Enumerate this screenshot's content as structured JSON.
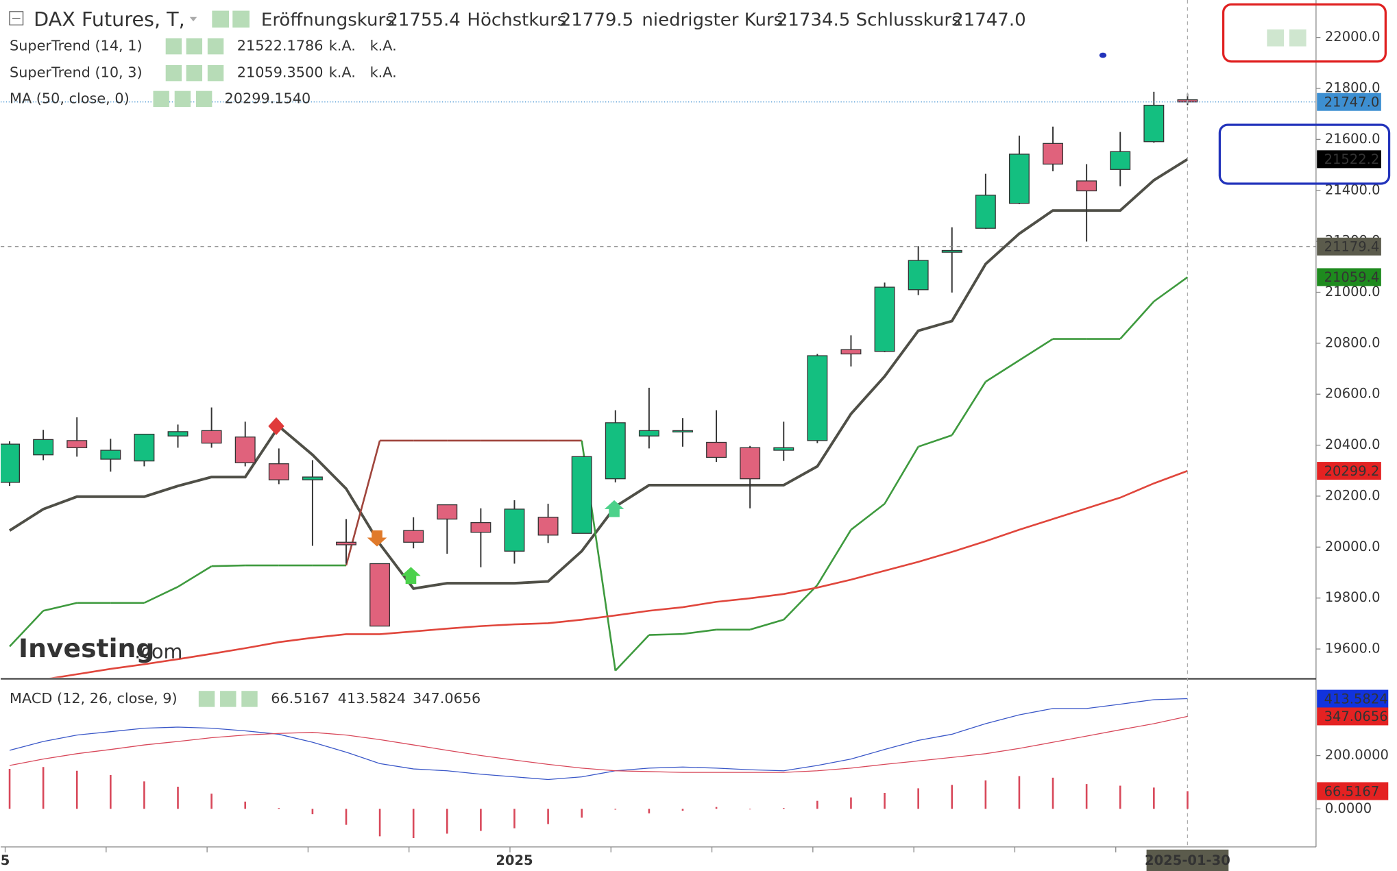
{
  "logo": {
    "brand": "Investing",
    "suffix": ".com"
  },
  "chart_data": [
    {
      "type": "candlestick",
      "title": "DAX Futures, T,",
      "header_labels": [
        "Eröffnungskurs",
        "Höchstkurs",
        "niedrigster Kurs",
        "Schlusskurs"
      ],
      "close_label": "21747.0",
      "categories": [
        "5",
        null,
        null,
        null,
        null,
        null,
        null,
        null,
        null,
        null,
        null,
        null,
        null,
        null,
        null,
        "2025",
        null,
        null,
        null,
        null,
        null,
        null,
        null,
        null,
        null,
        null,
        null,
        null,
        null,
        null,
        null,
        null,
        null,
        null,
        null,
        "2025-01-30"
      ],
      "open": [
        20254,
        20362,
        20418,
        20345,
        20338,
        20436,
        20457,
        20432,
        20327,
        20264,
        20019,
        19935,
        20065,
        20166,
        20096,
        19984,
        20117,
        20054,
        20268,
        20436,
        20453,
        20411,
        20390,
        20380,
        20418,
        20775,
        20768,
        21010,
        21157,
        21251,
        21349,
        21584,
        21437,
        21482,
        21591,
        21755.4
      ],
      "high": [
        20415,
        20460,
        20509,
        20425,
        20443,
        20481,
        20548,
        20492,
        20387,
        20341,
        20110,
        19935,
        20117,
        20166,
        20152,
        20184,
        20170,
        20355,
        20537,
        20625,
        20506,
        20537,
        20397,
        20492,
        20758,
        20831,
        21038,
        21181,
        21255,
        21465,
        21615,
        21650,
        21503,
        21629,
        21787,
        21779.5
      ],
      "low": [
        20240,
        20341,
        20355,
        20296,
        20317,
        20390,
        20390,
        20317,
        20247,
        20005,
        19935,
        19690,
        19995,
        19974,
        19921,
        19935,
        20016,
        20054,
        20254,
        20387,
        20394,
        20334,
        20152,
        20338,
        20408,
        20709,
        20765,
        20989,
        20999,
        21248,
        21346,
        21475,
        21199,
        21416,
        21587,
        21734.5
      ],
      "close": [
        20404,
        20422,
        20390,
        20380,
        20443,
        20453,
        20408,
        20331,
        20264,
        20275,
        20009,
        19690,
        20019,
        20110,
        20058,
        20149,
        20047,
        20355,
        20488,
        20457,
        20457,
        20352,
        20268,
        20390,
        20751,
        20758,
        21020,
        21125,
        21164,
        21381,
        21542,
        21503,
        21398,
        21552,
        21734,
        21747.0
      ],
      "up_color": "#14bf80",
      "down_color": "#e0627c",
      "close_box_color": "#3d8fd1",
      "series": [
        {
          "name": "SuperTrend (14, 1)",
          "color": "#4f4f47",
          "legend_color": "#111111",
          "extra": [
            "k.A.",
            "k.A."
          ],
          "last_label": "21522.2",
          "box_color": "#000000",
          "values": [
            20065,
            20149,
            20198,
            20198,
            20198,
            20240,
            20275,
            20275,
            20474,
            20362,
            20229,
            20012,
            19837,
            19858,
            19858,
            19858,
            19865,
            19984,
            20159,
            20243,
            20243,
            20243,
            20243,
            20243,
            20317,
            20523,
            20670,
            20849,
            20887,
            21111,
            21230,
            21321,
            21321,
            21321,
            21440,
            21522.1786
          ]
        },
        {
          "name": "SuperTrend (10, 3)",
          "color": "#3e9a3e",
          "legend_color": "#1e8a1e",
          "extra": [
            "k.A.",
            "k.A."
          ],
          "legend_value": "21059.3500",
          "last_label": "21059.4",
          "box_color": "#1e8a1e",
          "segment_colors": [
            "#3e9a3e",
            "#3e9a3e",
            "#3e9a3e",
            "#3e9a3e",
            "#3e9a3e",
            "#3e9a3e",
            "#3e9a3e",
            "#3e9a3e",
            "#3e9a3e",
            "#3e9a3e",
            "#3e9a3e",
            "#a0453c",
            "#a0453c",
            "#a0453c",
            "#a0453c",
            "#a0453c",
            "#a0453c",
            "#a0453c",
            "#3e9a3e",
            "#3e9a3e",
            "#3e9a3e",
            "#3e9a3e",
            "#3e9a3e",
            "#3e9a3e",
            "#3e9a3e",
            "#3e9a3e",
            "#3e9a3e",
            "#3e9a3e",
            "#3e9a3e",
            "#3e9a3e",
            "#3e9a3e",
            "#3e9a3e",
            "#3e9a3e",
            "#3e9a3e",
            "#3e9a3e",
            "#3e9a3e"
          ],
          "values": [
            19610,
            19750,
            19781,
            19781,
            19781,
            19844,
            19925,
            19928,
            19928,
            19928,
            19928,
            20418,
            20418,
            20418,
            20418,
            20418,
            20418,
            20418,
            19515,
            19655,
            19659,
            19676,
            19676,
            19715,
            19851,
            20068,
            20170,
            20394,
            20439,
            20649,
            20733,
            20817,
            20817,
            20817,
            20964,
            21059.35
          ]
        },
        {
          "name": "MA (50, close, 0)",
          "color": "#e0463c",
          "legend_color": "#e02020",
          "legend_value": "20299.1540",
          "last_label": "20299.2",
          "box_color": "#e42222",
          "values": [
            19466,
            19480,
            19501,
            19522,
            19540,
            19560,
            19581,
            19603,
            19627,
            19644,
            19658,
            19658,
            19669,
            19680,
            19690,
            19697,
            19701,
            19715,
            19732,
            19750,
            19764,
            19785,
            19799,
            19816,
            19841,
            19872,
            19907,
            19942,
            19981,
            20023,
            20068,
            20110,
            20152,
            20194,
            20250,
            20299.154
          ]
        }
      ],
      "crosshair": 21179.4,
      "crosshair_color": "#5b5b4c",
      "ylim": [
        19488,
        22147
      ],
      "yticks": [
        {
          "value": 19600,
          "label": "19600.0"
        },
        {
          "value": 19800,
          "label": "19800.0"
        },
        {
          "value": 20000,
          "label": "20000.0"
        },
        {
          "value": 20200,
          "label": "20200.0"
        },
        {
          "value": 20400,
          "label": "20400.0"
        },
        {
          "value": 20600,
          "label": "20600.0"
        },
        {
          "value": 20800,
          "label": "20800.0"
        },
        {
          "value": 21000,
          "label": "21000.0"
        },
        {
          "value": 21200,
          "label": "21200.0"
        },
        {
          "value": 21400,
          "label": "21400.0"
        },
        {
          "value": 21600,
          "label": "21600.0"
        },
        {
          "value": 21800,
          "label": "21800.0"
        },
        {
          "value": 22000,
          "label": "22000.0"
        }
      ],
      "grid": false
    },
    {
      "type": "macd",
      "title": "MACD (12, 26, close, 9)",
      "histogram": {
        "color": "#d8485a",
        "box_color": "#e42222",
        "values": [
          150,
          157,
          143,
          127,
          103,
          83,
          57,
          27,
          3,
          -20,
          -60,
          -103,
          -110,
          -93,
          -83,
          -73,
          -57,
          -33,
          -3,
          -17,
          -7,
          7,
          -2,
          3,
          30,
          43,
          60,
          77,
          90,
          107,
          123,
          117,
          93,
          87,
          80,
          66.5167
        ]
      },
      "macd": {
        "color": "#3a57c8",
        "box_color": "#1133dd",
        "values": [
          220,
          253,
          277,
          290,
          303,
          307,
          303,
          293,
          280,
          250,
          213,
          170,
          150,
          143,
          130,
          120,
          110,
          120,
          143,
          153,
          157,
          153,
          147,
          143,
          163,
          187,
          223,
          257,
          280,
          320,
          353,
          377,
          377,
          393,
          410,
          413.5824
        ]
      },
      "signal": {
        "color": "#d8485a",
        "box_color": "#e42222",
        "values": [
          163,
          187,
          207,
          223,
          240,
          253,
          267,
          277,
          283,
          287,
          277,
          260,
          240,
          220,
          200,
          183,
          167,
          153,
          143,
          140,
          137,
          137,
          137,
          137,
          143,
          153,
          167,
          180,
          193,
          207,
          227,
          250,
          273,
          297,
          320,
          347.0656
        ]
      },
      "ylim": [
        -143,
        483
      ],
      "yticks": [
        {
          "value": 0,
          "label": "0.0000"
        },
        {
          "value": 200,
          "label": "200.0000"
        }
      ],
      "grid": false
    }
  ]
}
